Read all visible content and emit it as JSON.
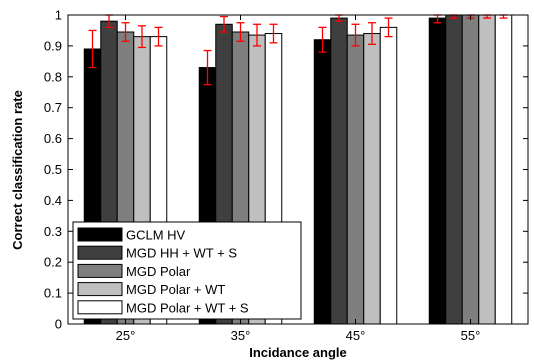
{
  "chart_data": {
    "type": "bar",
    "categories": [
      "25°",
      "35°",
      "45°",
      "55°"
    ],
    "series": [
      {
        "name": "GCLM HV",
        "color": "#000000",
        "values": [
          0.89,
          0.83,
          0.92,
          0.99
        ],
        "errors": [
          0.06,
          0.055,
          0.04,
          0.015
        ]
      },
      {
        "name": "MGD HH + WT + S",
        "color": "#3f3f3f",
        "values": [
          0.98,
          0.97,
          0.99,
          1.0
        ],
        "errors": [
          0.02,
          0.025,
          0.01,
          0.01
        ]
      },
      {
        "name": "MGD Polar",
        "color": "#7f7f7f",
        "values": [
          0.945,
          0.945,
          0.935,
          1.0
        ],
        "errors": [
          0.03,
          0.03,
          0.035,
          0.01
        ]
      },
      {
        "name": "MGD Polar + WT",
        "color": "#bfbfbf",
        "values": [
          0.93,
          0.935,
          0.94,
          1.0
        ],
        "errors": [
          0.035,
          0.035,
          0.035,
          0.01
        ]
      },
      {
        "name": "MGD Polar + WT + S",
        "color": "#ffffff",
        "values": [
          0.93,
          0.94,
          0.96,
          1.0
        ],
        "errors": [
          0.03,
          0.03,
          0.03,
          0.01
        ]
      }
    ],
    "error_bar_color": "#ff0000",
    "xlabel": "Incidance angle",
    "ylabel": "Correct classification rate",
    "ylim": [
      0,
      1
    ],
    "yticks": [
      "0",
      "0.1",
      "0.2",
      "0.3",
      "0.4",
      "0.5",
      "0.6",
      "0.7",
      "0.8",
      "0.9",
      "1"
    ],
    "grid": false,
    "legend_position": "bottom-left"
  }
}
